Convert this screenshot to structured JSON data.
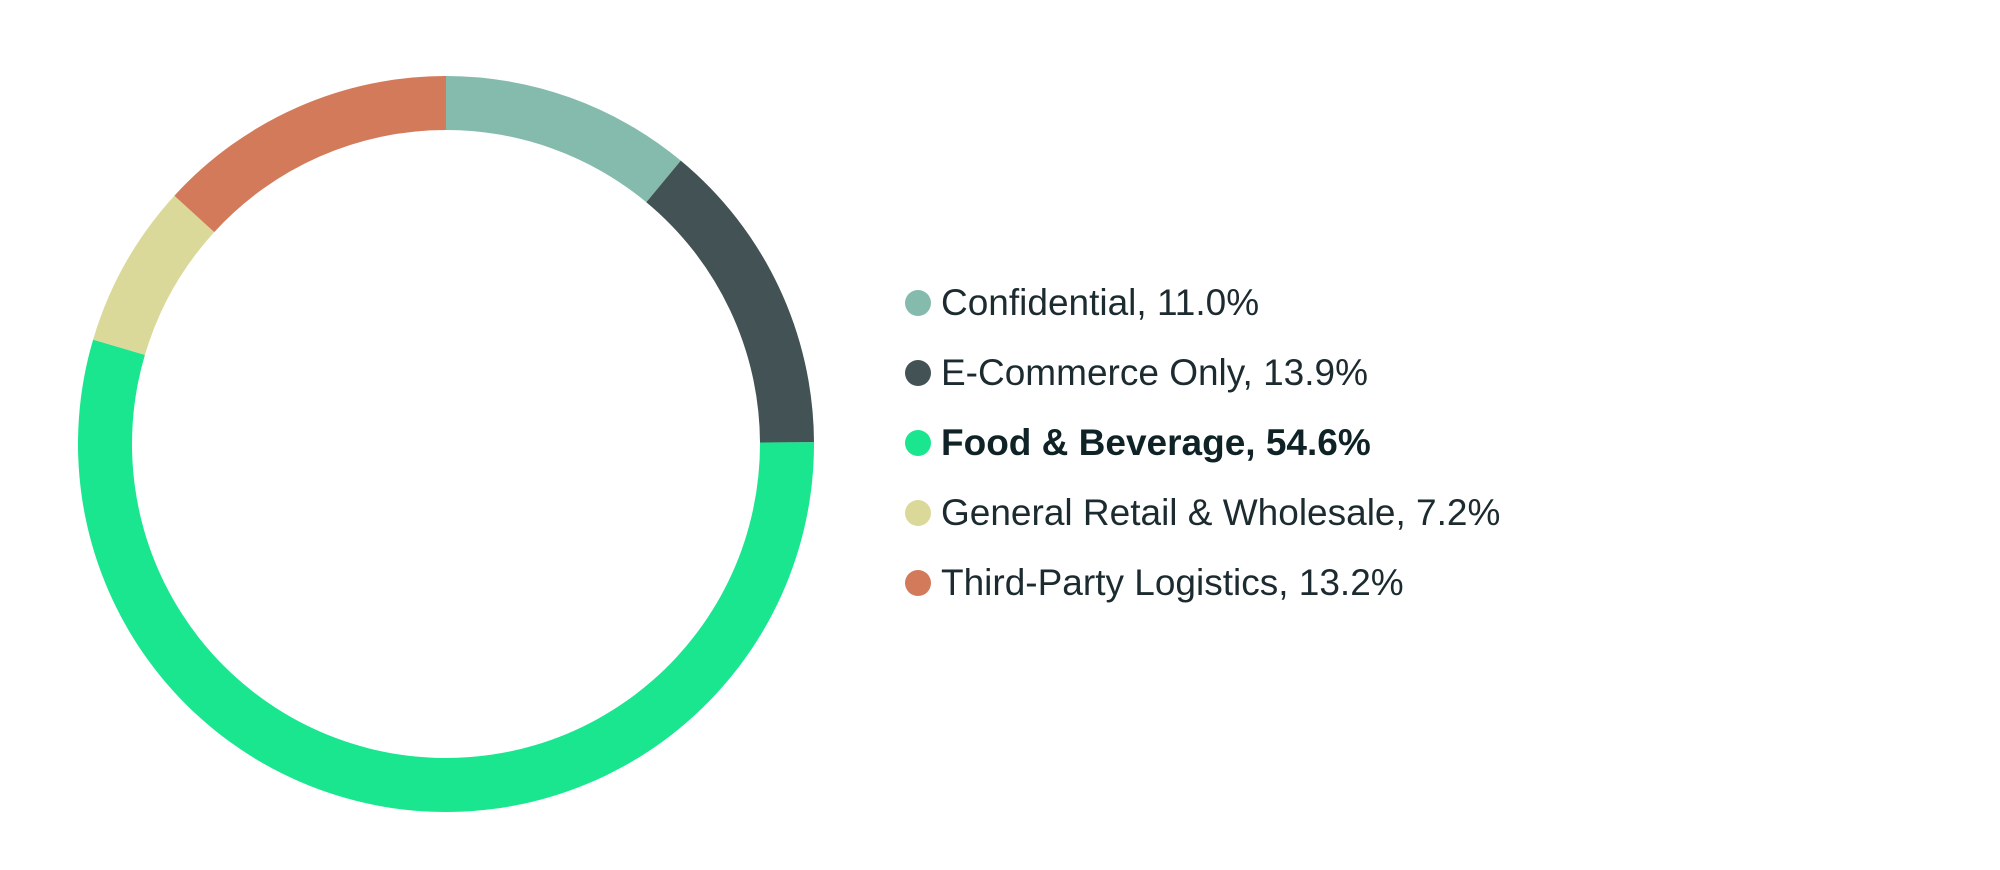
{
  "chart_data": {
    "type": "pie",
    "style": "donut",
    "start_angle": "12 o'clock",
    "direction": "clockwise",
    "slices": [
      {
        "label": "Confidential, 11.0%",
        "category": "Confidential",
        "value": 11.0,
        "color": "#85bbad",
        "highlight": false
      },
      {
        "label": "E-Commerce Only, 13.9%",
        "category": "E-Commerce Only",
        "value": 13.9,
        "color": "#435254",
        "highlight": false
      },
      {
        "label": "Food & Beverage, 54.6%",
        "category": "Food & Beverage",
        "value": 54.6,
        "color": "#19e68f",
        "highlight": true
      },
      {
        "label": "General Retail & Wholesale, 7.2%",
        "category": "General Retail & Wholesale",
        "value": 7.2,
        "color": "#dbd99a",
        "highlight": false
      },
      {
        "label": "Third-Party Logistics, 13.2%",
        "category": "Third-Party Logistics",
        "value": 13.2,
        "color": "#d27a5a",
        "highlight": false
      }
    ],
    "legend_position": "right"
  }
}
